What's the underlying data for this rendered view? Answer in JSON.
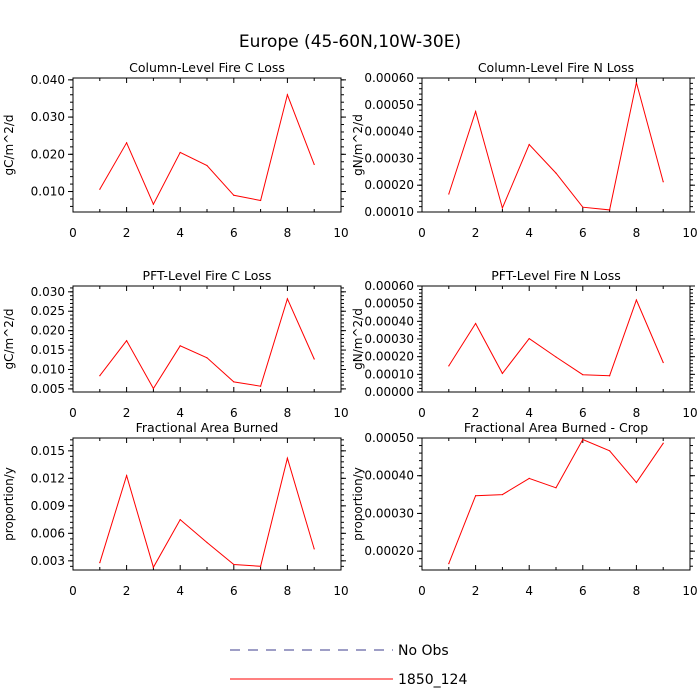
{
  "figure_title": "Europe (45-60N,10W-30E)",
  "colors": {
    "series_line": "#ff0000",
    "obs_line": "#3c3c8c",
    "axis": "#000000"
  },
  "legend": [
    {
      "label": "No Obs",
      "style": "dashed",
      "color": "#3c3c8c"
    },
    {
      "label": "1850_124",
      "style": "solid",
      "color": "#ff0000"
    }
  ],
  "chart_data": [
    {
      "type": "line",
      "title": "Column-Level Fire C Loss",
      "ylabel": "gC/m^2/d",
      "xlim": [
        0,
        10
      ],
      "ylim": [
        0.0045,
        0.0405
      ],
      "xticks": [
        0,
        2,
        4,
        6,
        8,
        10
      ],
      "xtick_labels": [
        "0",
        "2",
        "4",
        "6",
        "8",
        "10"
      ],
      "yticks": [
        0.01,
        0.02,
        0.03,
        0.04
      ],
      "ytick_labels": [
        "0.010",
        "0.020",
        "0.030",
        "0.040"
      ],
      "series": [
        {
          "name": "1850_124",
          "x": [
            1,
            2,
            3,
            4,
            5,
            6,
            7,
            8,
            9
          ],
          "values": [
            0.0106,
            0.0231,
            0.0066,
            0.0205,
            0.017,
            0.009,
            0.0076,
            0.036,
            0.0173
          ]
        }
      ]
    },
    {
      "type": "line",
      "title": "Column-Level Fire N Loss",
      "ylabel": "gN/m^2/d",
      "xlim": [
        0,
        10
      ],
      "ylim": [
        0.0001,
        0.0006
      ],
      "xticks": [
        0,
        2,
        4,
        6,
        8,
        10
      ],
      "xtick_labels": [
        "0",
        "2",
        "4",
        "6",
        "8",
        "10"
      ],
      "yticks": [
        0.0001,
        0.0002,
        0.0003,
        0.0004,
        0.0005,
        0.0006
      ],
      "ytick_labels": [
        "0.00010",
        "0.00020",
        "0.00030",
        "0.00040",
        "0.00050",
        "0.00060"
      ],
      "series": [
        {
          "name": "1850_124",
          "x": [
            1,
            2,
            3,
            4,
            5,
            6,
            7,
            8,
            9
          ],
          "values": [
            0.000167,
            0.000475,
            0.000115,
            0.000352,
            0.000245,
            0.000118,
            0.000108,
            0.000583,
            0.000213
          ]
        }
      ]
    },
    {
      "type": "line",
      "title": "PFT-Level Fire C Loss",
      "ylabel": "gC/m^2/d",
      "xlim": [
        0,
        10
      ],
      "ylim": [
        0.0042,
        0.0315
      ],
      "xticks": [
        0,
        2,
        4,
        6,
        8,
        10
      ],
      "xtick_labels": [
        "0",
        "2",
        "4",
        "6",
        "8",
        "10"
      ],
      "yticks": [
        0.005,
        0.01,
        0.015,
        0.02,
        0.025,
        0.03
      ],
      "ytick_labels": [
        "0.005",
        "0.010",
        "0.015",
        "0.020",
        "0.025",
        "0.030"
      ],
      "series": [
        {
          "name": "1850_124",
          "x": [
            1,
            2,
            3,
            4,
            5,
            6,
            7,
            8,
            9
          ],
          "values": [
            0.0084,
            0.0174,
            0.0051,
            0.0161,
            0.013,
            0.0068,
            0.0057,
            0.0282,
            0.0127
          ]
        }
      ]
    },
    {
      "type": "line",
      "title": "PFT-Level Fire N Loss",
      "ylabel": "gN/m^2/d",
      "xlim": [
        0,
        10
      ],
      "ylim": [
        0.0,
        0.0006
      ],
      "xticks": [
        0,
        2,
        4,
        6,
        8,
        10
      ],
      "xtick_labels": [
        "0",
        "2",
        "4",
        "6",
        "8",
        "10"
      ],
      "yticks": [
        0.0,
        0.0001,
        0.0002,
        0.0003,
        0.0004,
        0.0005,
        0.0006
      ],
      "ytick_labels": [
        "0.00000",
        "0.00010",
        "0.00020",
        "0.00030",
        "0.00040",
        "0.00050",
        "0.00060"
      ],
      "series": [
        {
          "name": "1850_124",
          "x": [
            1,
            2,
            3,
            4,
            5,
            6,
            7,
            8,
            9
          ],
          "values": [
            0.000148,
            0.000388,
            0.000105,
            0.000302,
            0.000198,
            9.8e-05,
            9.2e-05,
            0.000521,
            0.000167
          ]
        }
      ]
    },
    {
      "type": "line",
      "title": "Fractional Area Burned",
      "ylabel": "proportion/y",
      "xlim": [
        0,
        10
      ],
      "ylim": [
        0.002,
        0.0164
      ],
      "xticks": [
        0,
        2,
        4,
        6,
        8,
        10
      ],
      "xtick_labels": [
        "0",
        "2",
        "4",
        "6",
        "8",
        "10"
      ],
      "yticks": [
        0.003,
        0.006,
        0.009,
        0.012,
        0.015
      ],
      "ytick_labels": [
        "0.003",
        "0.006",
        "0.009",
        "0.012",
        "0.015"
      ],
      "series": [
        {
          "name": "1850_124",
          "x": [
            1,
            2,
            3,
            4,
            5,
            6,
            7,
            8,
            9
          ],
          "values": [
            0.0028,
            0.0123,
            0.0023,
            0.0075,
            0.005,
            0.0026,
            0.0024,
            0.0142,
            0.0043
          ]
        }
      ]
    },
    {
      "type": "line",
      "title": "Fractional Area Burned - Crop",
      "ylabel": "proportion/y",
      "xlim": [
        0,
        10
      ],
      "ylim": [
        0.00015,
        0.0005
      ],
      "xticks": [
        0,
        2,
        4,
        6,
        8,
        10
      ],
      "xtick_labels": [
        "0",
        "2",
        "4",
        "6",
        "8",
        "10"
      ],
      "yticks": [
        0.0002,
        0.0003,
        0.0004,
        0.0005
      ],
      "ytick_labels": [
        "0.00020",
        "0.00030",
        "0.00040",
        "0.00050"
      ],
      "series": [
        {
          "name": "1850_124",
          "x": [
            1,
            2,
            3,
            4,
            5,
            6,
            7,
            8,
            9
          ],
          "values": [
            0.000167,
            0.000347,
            0.00035,
            0.000393,
            0.000368,
            0.000496,
            0.000466,
            0.000382,
            0.000486
          ]
        }
      ]
    }
  ]
}
